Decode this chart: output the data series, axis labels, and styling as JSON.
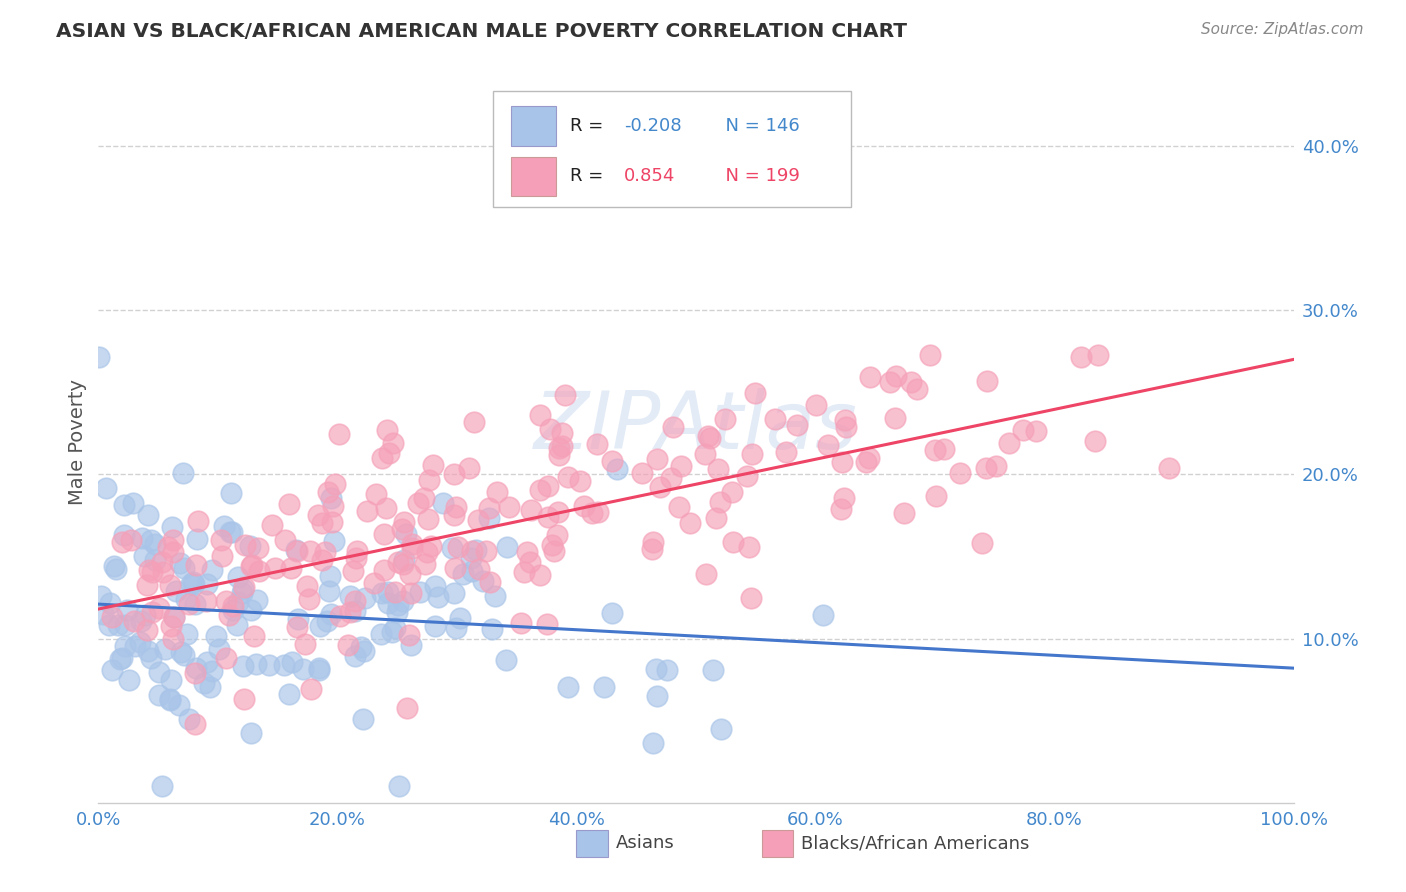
{
  "title": "ASIAN VS BLACK/AFRICAN AMERICAN MALE POVERTY CORRELATION CHART",
  "source_text": "Source: ZipAtlas.com",
  "ylabel": "Male Poverty",
  "xlim": [
    0,
    1
  ],
  "ylim": [
    0,
    0.44
  ],
  "xtick_labels": [
    "0.0%",
    "20.0%",
    "40.0%",
    "60.0%",
    "80.0%",
    "100.0%"
  ],
  "xtick_vals": [
    0,
    0.2,
    0.4,
    0.6,
    0.8,
    1.0
  ],
  "ytick_labels": [
    "10.0%",
    "20.0%",
    "30.0%",
    "40.0%"
  ],
  "ytick_vals": [
    0.1,
    0.2,
    0.3,
    0.4
  ],
  "asian_color": "#a8c4e8",
  "black_color": "#f5a0b8",
  "asian_line_color": "#4477cc",
  "black_line_color": "#ee4466",
  "asian_R": -0.208,
  "black_R": 0.854,
  "asian_N_val": 146,
  "black_N_val": 199,
  "watermark": "ZIPAtlas",
  "legend_label_asian": "Asians",
  "legend_label_black": "Blacks/African Americans",
  "background_color": "#ffffff",
  "grid_color": "#cccccc",
  "asian_trend_x0": 0.0,
  "asian_trend_y0": 0.121,
  "asian_trend_x1": 1.0,
  "asian_trend_y1": 0.082,
  "black_trend_x0": 0.0,
  "black_trend_y0": 0.118,
  "black_trend_x1": 1.0,
  "black_trend_y1": 0.27,
  "tick_color": "#4488cc",
  "title_color": "#333333",
  "source_color": "#888888",
  "ylabel_color": "#555555"
}
